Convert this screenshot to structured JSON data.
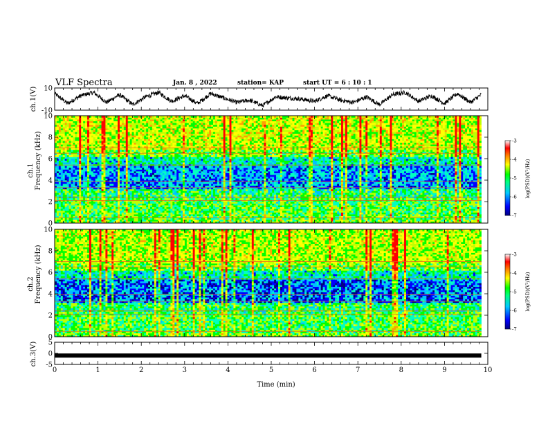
{
  "header": {
    "title": "VLF Spectra",
    "date": "Jan. 8 , 2022",
    "station": "station= KAP",
    "start": "start  UT =  6 : 10 : 1"
  },
  "chart_data": [
    {
      "type": "line",
      "panel": "ch1-waveform",
      "ylabel": "ch.1(V)",
      "ylim": [
        -10,
        10
      ],
      "yticks": [
        "10",
        "-10"
      ],
      "xlim": [
        0,
        10
      ],
      "x_end": 9.85,
      "description_points": "oscillating envelope between about -7 and 8 V",
      "x": [
        0,
        0.3,
        0.6,
        0.9,
        1.2,
        1.5,
        1.8,
        2.1,
        2.4,
        2.7,
        3.0,
        3.3,
        3.6,
        3.9,
        4.2,
        4.5,
        4.8,
        5.1,
        5.4,
        5.7,
        6.0,
        6.3,
        6.6,
        6.9,
        7.2,
        7.5,
        7.8,
        8.1,
        8.4,
        8.7,
        9.0,
        9.3,
        9.6,
        9.85
      ],
      "y": [
        5,
        -4,
        3,
        6,
        -3,
        4,
        -5,
        2,
        6,
        -2,
        3,
        -4,
        5,
        1,
        -3,
        -1,
        -6,
        2,
        1,
        0,
        -2,
        3,
        -1,
        -3,
        2,
        -5,
        4,
        6,
        -2,
        3,
        -4,
        5,
        -3,
        4
      ]
    },
    {
      "type": "heatmap",
      "panel": "ch1-spectrogram",
      "ylabel_line1": "ch.1",
      "ylabel_line2": "Frequency (kHz)",
      "ylim": [
        0,
        10
      ],
      "yticks": [
        "0",
        "2",
        "4",
        "6",
        "8",
        "10"
      ],
      "xlim": [
        0,
        10
      ],
      "x_end": 9.85,
      "colorbar_label": "log(PSD)(V²/Hz)",
      "colorbar_range": [
        -7,
        -3
      ],
      "colorbar_ticks": [
        "-3",
        "-4",
        "-5",
        "-6",
        "-7"
      ]
    },
    {
      "type": "heatmap",
      "panel": "ch2-spectrogram",
      "ylabel_line1": "ch.2",
      "ylabel_line2": "Frequency (kHz)",
      "ylim": [
        0,
        10
      ],
      "yticks": [
        "0",
        "2",
        "4",
        "6",
        "8",
        "10"
      ],
      "xlim": [
        0,
        10
      ],
      "x_end": 9.85,
      "colorbar_label": "log(PSD)(V²/Hz)",
      "colorbar_range": [
        -7,
        -3
      ],
      "colorbar_ticks": [
        "-3",
        "-4",
        "-5",
        "-6",
        "-7"
      ]
    },
    {
      "type": "line",
      "panel": "ch3-waveform",
      "ylabel": "ch.3(V)",
      "ylim": [
        -5,
        5
      ],
      "yticks": [
        "5",
        "0",
        "-5"
      ],
      "xlim": [
        0,
        10
      ],
      "x_end": 9.85,
      "level": -1.0,
      "xlabel": "Time (min)",
      "xticks": [
        "0",
        "1",
        "2",
        "3",
        "4",
        "5",
        "6",
        "7",
        "8",
        "9",
        "10"
      ]
    }
  ],
  "colors": {
    "scale": [
      "#00007f",
      "#0000ff",
      "#00bfff",
      "#00ffc0",
      "#00ff00",
      "#c0ff00",
      "#ffff00",
      "#ffa000",
      "#ff0000",
      "#ffffff"
    ]
  }
}
